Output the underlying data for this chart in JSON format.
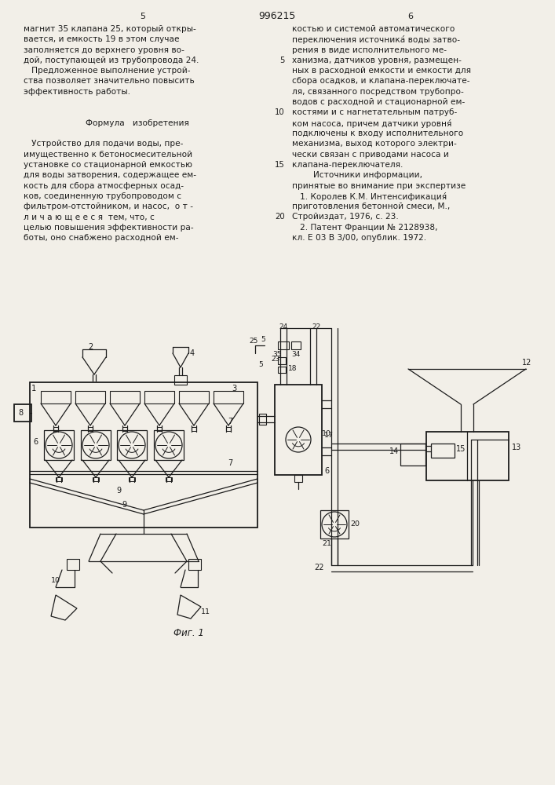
{
  "page_width": 7.07,
  "page_height": 10.0,
  "bg_color": "#f2efe8",
  "header_num": "996215",
  "header_left_col": "5",
  "header_right_col": "6",
  "left_col_lines": [
    "магнит 35 клапана 25, который откры-",
    "вается, и емкость 19 в этом случае",
    "заполняется до верхнего уровня во-",
    "дой, поступающей из трубопровода 24.",
    "   Предложенное выполнение устрой-",
    "ства позволяет значительно повысить",
    "эффективность работы.",
    "",
    "",
    "      Формула   изобретения",
    "",
    "   Устройство для подачи воды, пре-",
    "имущественно к бетоносмесительной",
    "установке со стационарной емкостью",
    "для воды затворения, содержащее ем-",
    "кость для сбора атмосферных осад-",
    "ков, соединенную трубопроводом с",
    "фильтром-отстойником, и насос,  о т -",
    "л и ч а ю щ е е с я  тем, что, с",
    "целью повышения эффективности ра-",
    "боты, оно снабжено расходной ем-"
  ],
  "right_col_lines": [
    "костью и системой автоматического",
    "переключения источника́ воды затво-",
    "рения в виде исполнительного ме-",
    "ханизма, датчиков уровня, размещен-",
    "ных в расходной емкости и емкости для",
    "сбора осадков, и клапана-переключате-",
    "ля, связанного посредством трубопро-",
    "водов с расходной и стационарной ем-",
    "костями и с нагнетательным патруб-",
    "ком насоса, причем датчики уровня́",
    "подключены к входу исполнительного",
    "механизма, выход которого электри-",
    "чески связан с приводами насоса и",
    "клапана-переключателя.",
    "        Источники информации,",
    "принятые во внимание при экспертизе",
    "   1. Королев К.М. Интенсификация́",
    "приготовления бетонной смеси, М.,",
    "Стройиздат, 1976, с. 23.",
    "   2. Патент Франции № 2128938,",
    "кл. Е 03 В 3/00, опублик. 1972."
  ],
  "fig_caption": "Фиг. 1"
}
